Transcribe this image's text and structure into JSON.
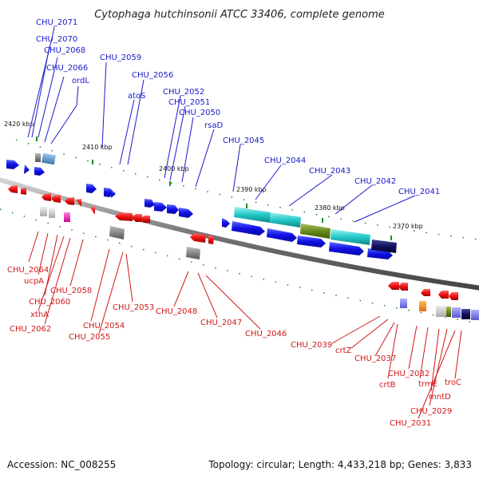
{
  "title": "Cytophaga hutchinsonii ATCC 33406, complete genome",
  "footer": {
    "accession": "Accession: NC_008255",
    "summary": "Topology: circular; Length: 4,433,218 bp; Genes: 3,833"
  },
  "scale": [
    "2420 kbp",
    "2410 kbp",
    "2400 kbp",
    "2390 kbp",
    "2380 kbp",
    "2370 kbp"
  ],
  "labels_top": [
    "CHU_2071",
    "CHU_2070",
    "CHU_2068",
    "CHU_2066",
    "ordL",
    "CHU_2059",
    "CHU_2056",
    "atoS",
    "CHU_2052",
    "CHU_2051",
    "CHU_2050",
    "rsaD",
    "CHU_2045",
    "CHU_2044",
    "CHU_2043",
    "CHU_2042",
    "CHU_2041"
  ],
  "labels_bottom": [
    "CHU_2064",
    "ucpA",
    "CHU_2060",
    "xthA",
    "CHU_2062",
    "CHU_2058",
    "CHU_2054",
    "CHU_2055",
    "CHU_2053",
    "CHU_2048",
    "CHU_2047",
    "CHU_2046",
    "CHU_2039",
    "crtZ",
    "CHU_2037",
    "crtB",
    "CHU_2032",
    "trmE",
    "mntD",
    "CHU_2029",
    "CHU_2031",
    "troC"
  ],
  "colors": {
    "forward": "#1a1aee",
    "reverse": "#ee1111",
    "backbone": "#8a8a8a",
    "tick": "#1f8a1f",
    "label_top": "#1a1acc",
    "label_bottom": "#d01818"
  }
}
